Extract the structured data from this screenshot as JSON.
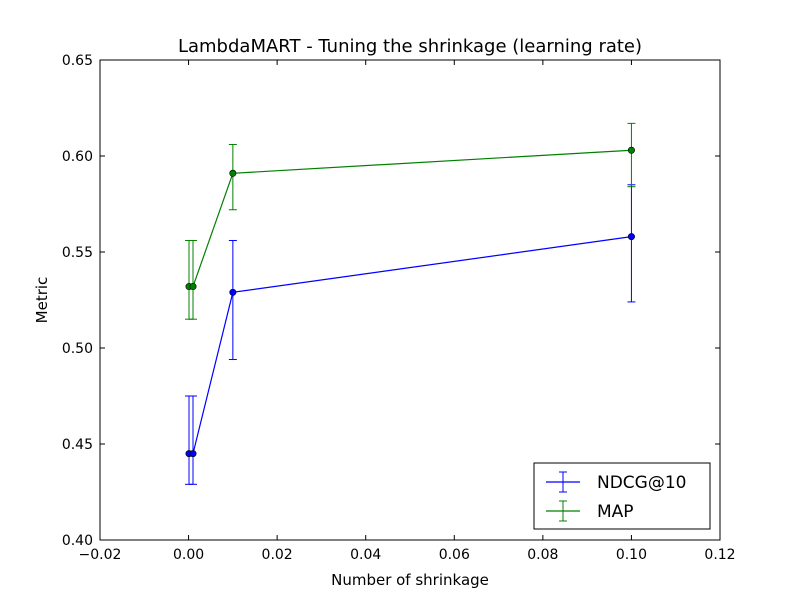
{
  "chart_data": {
    "type": "line",
    "title": "LambdaMART - Tuning the shrinkage (learning rate)",
    "xlabel": "Number of shrinkage",
    "ylabel": "Metric",
    "xlim": [
      -0.02,
      0.12
    ],
    "ylim": [
      0.4,
      0.65
    ],
    "x_ticks": [
      -0.02,
      0.0,
      0.02,
      0.04,
      0.06,
      0.08,
      0.1,
      0.12
    ],
    "x_tick_labels": [
      "−0.02",
      "0.00",
      "0.02",
      "0.04",
      "0.06",
      "0.08",
      "0.10",
      "0.12"
    ],
    "y_ticks": [
      0.4,
      0.45,
      0.5,
      0.55,
      0.6,
      0.65
    ],
    "y_tick_labels": [
      "0.40",
      "0.45",
      "0.50",
      "0.55",
      "0.60",
      "0.65"
    ],
    "grid": false,
    "legend_position": "bottom-right",
    "series": [
      {
        "name": "NDCG@10",
        "color": "#0000ff",
        "x": [
          0.0001,
          0.001,
          0.01,
          0.1
        ],
        "y": [
          0.445,
          0.445,
          0.529,
          0.558
        ],
        "err_low": [
          0.429,
          0.429,
          0.494,
          0.524
        ],
        "err_high": [
          0.475,
          0.475,
          0.556,
          0.585
        ]
      },
      {
        "name": "MAP",
        "color": "#008000",
        "x": [
          0.0001,
          0.001,
          0.01,
          0.1
        ],
        "y": [
          0.532,
          0.532,
          0.591,
          0.603
        ],
        "err_low": [
          0.515,
          0.515,
          0.572,
          0.584
        ],
        "err_high": [
          0.556,
          0.556,
          0.606,
          0.617
        ]
      }
    ]
  }
}
